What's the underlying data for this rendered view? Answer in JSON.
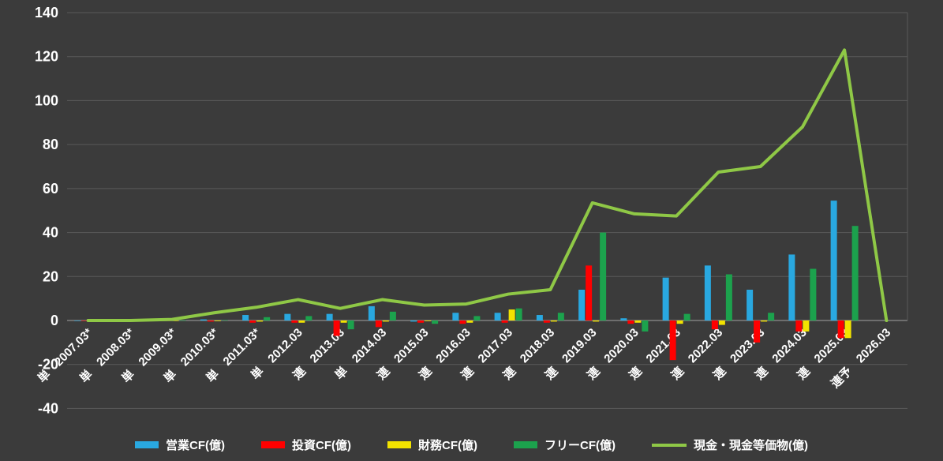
{
  "chart_data": {
    "type": "bar",
    "combo": "grouped bars with overlaid line",
    "categories": [
      "2007.03*",
      "2008.03*",
      "2009.03*",
      "2010.03*",
      "2011.03*",
      "2012.03",
      "2013.03",
      "2014.03",
      "2015.03",
      "2016.03",
      "2017.03",
      "2018.03",
      "2019.03",
      "2020.03",
      "2021.03",
      "2022.03",
      "2023.03",
      "2024.03",
      "2025.03",
      "2026.03"
    ],
    "period_prefixes": [
      "単",
      "単",
      "単",
      "単",
      "単",
      "単",
      "連",
      "単",
      "連",
      "連",
      "連",
      "連",
      "連",
      "連",
      "連",
      "連",
      "連",
      "連",
      "連",
      "連予"
    ],
    "series": [
      {
        "key": "operating-cf",
        "name": "営業CF(億)",
        "type": "bar",
        "color": "#29A8E0",
        "values": [
          0,
          0,
          0.2,
          0.5,
          2.5,
          3,
          3,
          6.5,
          -0.5,
          3.5,
          3.5,
          2.5,
          14,
          1,
          19.5,
          25,
          14,
          30,
          54.5,
          null
        ]
      },
      {
        "key": "investing-cf",
        "name": "投資CF(億)",
        "type": "bar",
        "color": "#FF0000",
        "values": [
          0,
          -0.1,
          -0.2,
          -0.5,
          -1,
          -1,
          -7,
          -3,
          -1,
          -1.5,
          -1,
          -1,
          25,
          -1.5,
          -18,
          -4,
          -10,
          -5,
          -8,
          null
        ]
      },
      {
        "key": "financing-cf",
        "name": "財務CF(億)",
        "type": "bar",
        "color": "#F2E300",
        "values": [
          0,
          0,
          -0.1,
          -0.3,
          -0.5,
          -1,
          -1,
          -0.5,
          -0.3,
          -1,
          5,
          -0.5,
          -0.5,
          -1,
          -1.5,
          -2,
          -0.5,
          -5,
          -8,
          null
        ]
      },
      {
        "key": "free-cf",
        "name": "フリーCF(億)",
        "type": "bar",
        "color": "#1CA24D",
        "values": [
          0,
          0,
          0.1,
          0.2,
          1.5,
          2,
          -4,
          4,
          -1.5,
          2,
          5.5,
          3.5,
          40,
          -5,
          3,
          21,
          3.5,
          23.5,
          43,
          null
        ]
      },
      {
        "key": "cash-equivalents",
        "name": "現金・現金等価物(億)",
        "type": "line",
        "color": "#8FC846",
        "values": [
          0,
          0,
          0.5,
          3.5,
          6,
          9.5,
          5.5,
          9.5,
          7,
          7.5,
          12,
          14,
          53.5,
          48.5,
          47.5,
          67.5,
          70,
          88,
          123,
          0
        ]
      }
    ],
    "ylim": [
      -40,
      140
    ],
    "yticks": [
      140,
      120,
      100,
      80,
      60,
      40,
      20,
      0,
      -20,
      -40
    ],
    "grid": true,
    "legend_position": "bottom",
    "background": "#3B3B3B",
    "grid_color": "#5A5A5A",
    "zero_line_color": "#7F7F7F",
    "text_color": "#FFFFFF"
  }
}
